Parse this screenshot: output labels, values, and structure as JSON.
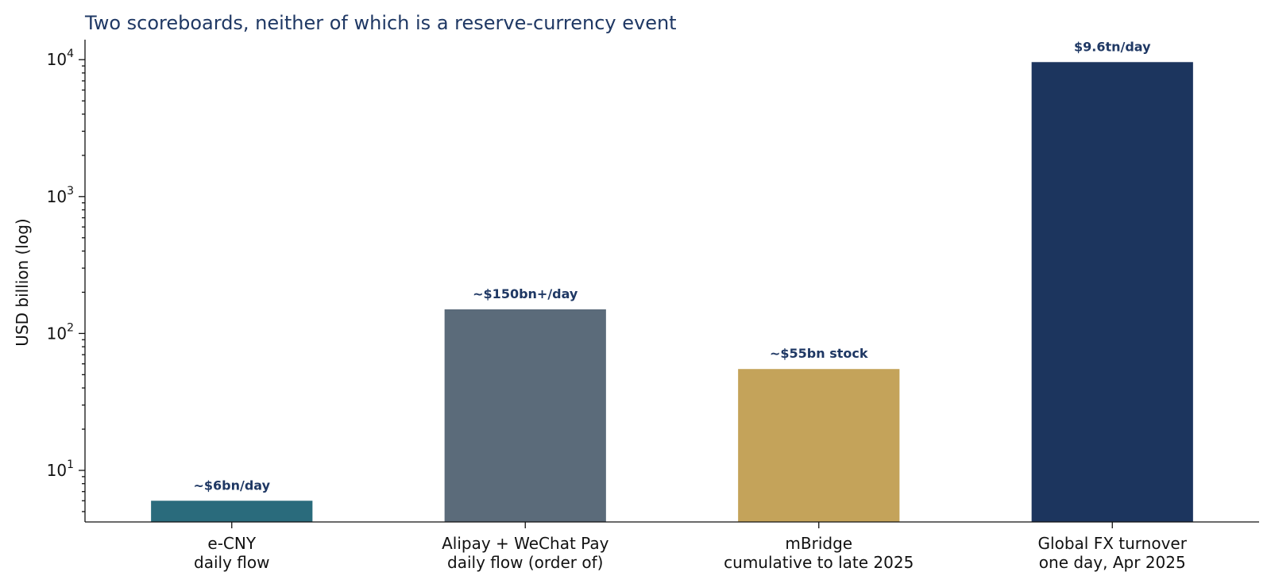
{
  "chart_data": {
    "type": "bar",
    "title": "Two scoreboards, neither of which is a reserve-currency event",
    "xlabel": "",
    "ylabel": "USD billion (log)",
    "yscale": "log",
    "ylim": [
      4.2,
      14000
    ],
    "yticks": [
      {
        "base": "10",
        "exp": "1",
        "value": 10
      },
      {
        "base": "10",
        "exp": "2",
        "value": 100
      },
      {
        "base": "10",
        "exp": "3",
        "value": 1000
      },
      {
        "base": "10",
        "exp": "4",
        "value": 10000
      }
    ],
    "grid": false,
    "legend": "none",
    "categories": [
      [
        "e-CNY",
        "daily flow"
      ],
      [
        "Alipay + WeChat Pay",
        "daily flow (order of)"
      ],
      [
        "mBridge",
        "cumulative to late 2025"
      ],
      [
        "Global FX turnover",
        "one day, Apr 2025"
      ]
    ],
    "values": [
      6,
      150,
      55,
      9600
    ],
    "data_labels": [
      "~$6bn/day",
      "~$150bn+/day",
      "~$55bn stock",
      "$9.6tn/day"
    ],
    "colors": [
      "#2a6b7c",
      "#5b6b7a",
      "#c4a35a",
      "#1c355e"
    ]
  }
}
